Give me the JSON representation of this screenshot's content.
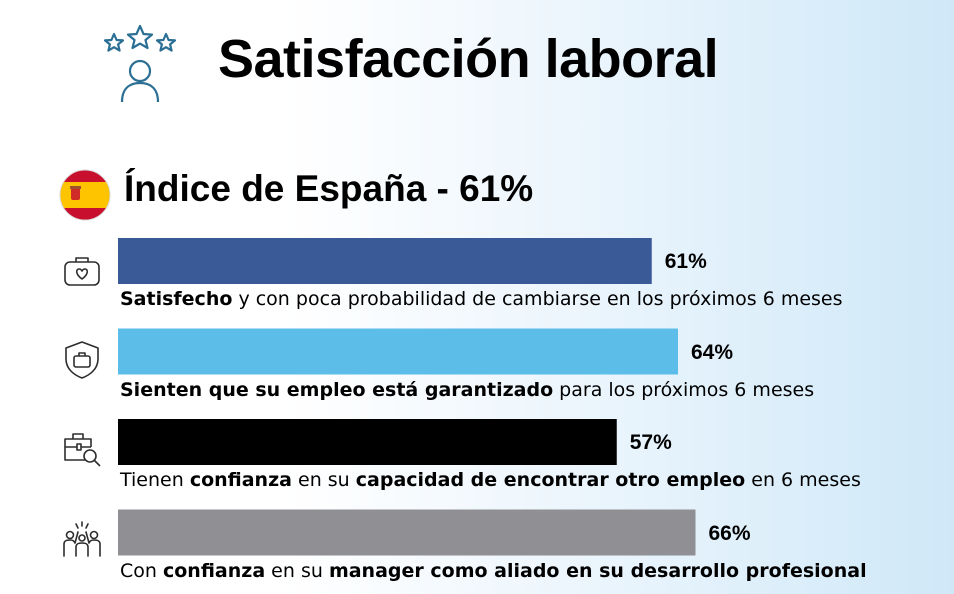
{
  "header": {
    "title": "Satisfacción laboral",
    "icon": "stars-person-icon"
  },
  "index_line": {
    "text": "Índice de España - 61%",
    "flag_icon": "spain-flag-icon"
  },
  "chart_data": {
    "type": "bar",
    "orientation": "horizontal",
    "title": "Satisfacción laboral",
    "subtitle": "Índice de España - 61%",
    "xlim": [
      0,
      100
    ],
    "grid": false,
    "categories": [
      "Satisfecho y con poca probabilidad de cambiarse en los próximos 6 meses",
      "Sienten que su empleo está garantizado para los próximos 6 meses",
      "Tienen confianza en su capacidad de encontrar otro empleo en 6 meses",
      "Con confianza en su manager como aliado en su desarrollo profesional"
    ],
    "values": [
      61,
      64,
      57,
      66
    ],
    "value_labels": [
      "61%",
      "64%",
      "57%",
      "66%"
    ],
    "colors": [
      "#3a5a97",
      "#5dbde9",
      "#000000",
      "#8f8f94"
    ],
    "icons": [
      "briefcase-heart-icon",
      "shield-briefcase-icon",
      "briefcase-search-icon",
      "team-cheer-icon"
    ],
    "label_segments": [
      [
        {
          "t": "Satisfecho",
          "b": true
        },
        {
          "t": " y con poca probabilidad de cambiarse en los próximos 6 meses",
          "b": false
        }
      ],
      [
        {
          "t": "Sienten que su empleo está garantizado",
          "b": true
        },
        {
          "t": " para los próximos 6 meses",
          "b": false
        }
      ],
      [
        {
          "t": "Tienen ",
          "b": false
        },
        {
          "t": "confianza",
          "b": true
        },
        {
          "t": " en su ",
          "b": false
        },
        {
          "t": "capacidad de encontrar otro empleo",
          "b": true
        },
        {
          "t": " en 6 meses",
          "b": false
        }
      ],
      [
        {
          "t": "Con ",
          "b": false
        },
        {
          "t": "confianza",
          "b": true
        },
        {
          "t": " en su ",
          "b": false
        },
        {
          "t": "manager como aliado en su desarrollo profesional",
          "b": true
        }
      ]
    ]
  }
}
